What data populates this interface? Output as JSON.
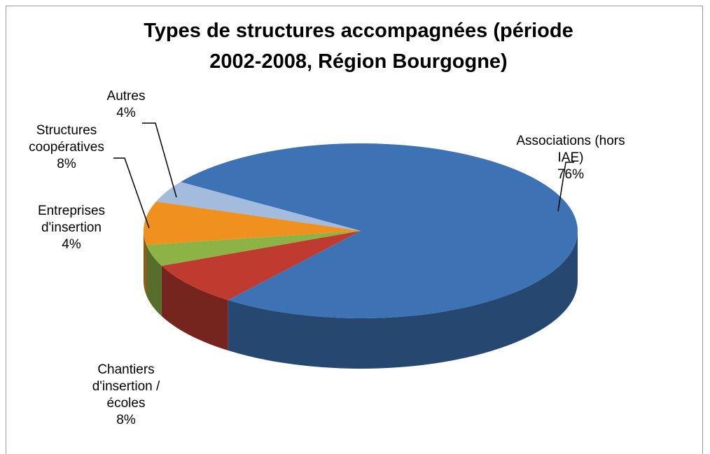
{
  "chart_data": {
    "type": "pie3d",
    "title": "Types de structures accompagnées (période 2002-2008, Région Bourgogne)",
    "categories": [
      "Associations (hors IAE)",
      "Chantiers d'insertion / écoles",
      "Entreprises d'insertion",
      "Structures coopératives",
      "Autres"
    ],
    "values": [
      76,
      8,
      4,
      8,
      4
    ],
    "value_labels": [
      "76%",
      "8%",
      "4%",
      "8%",
      "4%"
    ],
    "colors": [
      "#3d72b4",
      "#bf3b30",
      "#8db245",
      "#f0901f",
      "#a3bbdd"
    ]
  }
}
